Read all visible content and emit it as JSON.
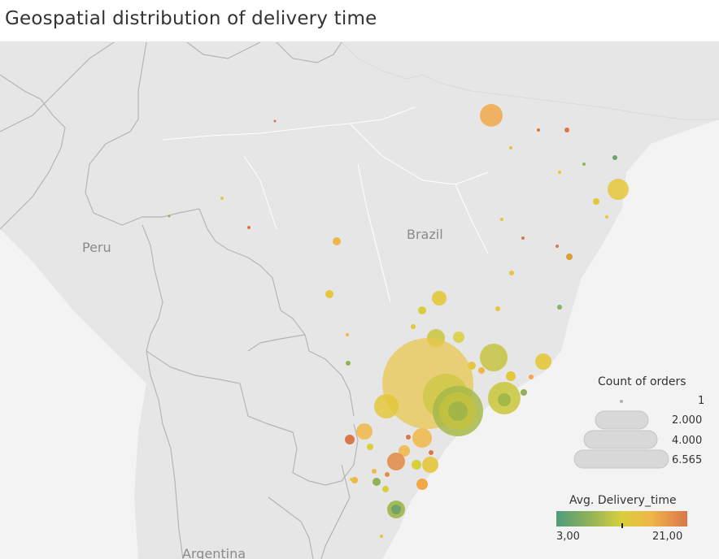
{
  "title": "Geospatial distribution of delivery time",
  "map": {
    "labels": {
      "peru": "Peru",
      "brazil": "Brazil",
      "argentina": "Argentina"
    },
    "colors": {
      "land": "#e6e6e6",
      "water": "#f3f3f3",
      "border": "#b5b5b5"
    }
  },
  "legend_size": {
    "title": "Count of orders",
    "values": [
      "1",
      "2.000",
      "4.000",
      "6.565"
    ]
  },
  "legend_color": {
    "title": "Avg. Delivery_time",
    "min": "3,00",
    "max": "21,00",
    "colors": [
      "#4e9c7e",
      "#8fb25a",
      "#d8cf3c",
      "#f0b647",
      "#d9764a"
    ]
  }
}
